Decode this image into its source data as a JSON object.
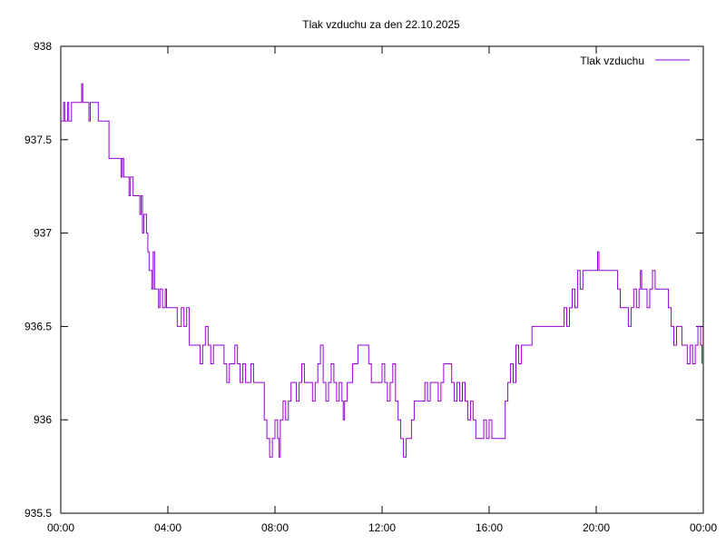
{
  "chart_data": {
    "type": "line",
    "title": "Tlak vzduchu za den 22.10.2025",
    "xlabel": "",
    "ylabel": "",
    "x_range_hours": [
      0,
      24
    ],
    "ylim": [
      935.5,
      938
    ],
    "grid": false,
    "legend_position": "top-right",
    "y_ticks": [
      "935.5",
      "936",
      "936.5",
      "937",
      "937.5",
      "938"
    ],
    "x_ticks": [
      "00:00",
      "04:00",
      "08:00",
      "12:00",
      "16:00",
      "20:00",
      "00:00"
    ],
    "series": [
      {
        "name": "Tlak vzduchu",
        "color": "#9400d3",
        "points": [
          [
            0.0,
            937.6
          ],
          [
            0.1,
            937.7
          ],
          [
            0.15,
            937.6
          ],
          [
            0.25,
            937.7
          ],
          [
            0.3,
            937.6
          ],
          [
            0.4,
            937.7
          ],
          [
            0.5,
            937.7
          ],
          [
            0.7,
            937.7
          ],
          [
            0.78,
            937.8
          ],
          [
            0.82,
            937.7
          ],
          [
            1.0,
            937.7
          ],
          [
            1.05,
            937.6
          ],
          [
            1.1,
            937.7
          ],
          [
            1.3,
            937.7
          ],
          [
            1.4,
            937.6
          ],
          [
            1.7,
            937.6
          ],
          [
            1.8,
            937.4
          ],
          [
            2.2,
            937.4
          ],
          [
            2.25,
            937.3
          ],
          [
            2.3,
            937.4
          ],
          [
            2.35,
            937.3
          ],
          [
            2.5,
            937.3
          ],
          [
            2.55,
            937.2
          ],
          [
            2.6,
            937.3
          ],
          [
            2.7,
            937.2
          ],
          [
            2.9,
            937.2
          ],
          [
            2.95,
            937.1
          ],
          [
            3.0,
            937.2
          ],
          [
            3.05,
            937.0
          ],
          [
            3.1,
            937.1
          ],
          [
            3.2,
            937.0
          ],
          [
            3.25,
            936.9
          ],
          [
            3.3,
            936.8
          ],
          [
            3.4,
            936.7
          ],
          [
            3.45,
            936.9
          ],
          [
            3.5,
            936.7
          ],
          [
            3.6,
            936.7
          ],
          [
            3.65,
            936.6
          ],
          [
            3.7,
            936.7
          ],
          [
            3.8,
            936.6
          ],
          [
            3.9,
            936.7
          ],
          [
            3.95,
            936.6
          ],
          [
            4.3,
            936.6
          ],
          [
            4.35,
            936.5
          ],
          [
            4.5,
            936.6
          ],
          [
            4.6,
            936.5
          ],
          [
            4.7,
            936.6
          ],
          [
            4.8,
            936.4
          ],
          [
            5.1,
            936.4
          ],
          [
            5.2,
            936.3
          ],
          [
            5.3,
            936.4
          ],
          [
            5.4,
            936.5
          ],
          [
            5.5,
            936.4
          ],
          [
            5.6,
            936.3
          ],
          [
            5.7,
            936.4
          ],
          [
            6.0,
            936.4
          ],
          [
            6.1,
            936.3
          ],
          [
            6.2,
            936.2
          ],
          [
            6.3,
            936.3
          ],
          [
            6.5,
            936.4
          ],
          [
            6.6,
            936.3
          ],
          [
            6.7,
            936.2
          ],
          [
            6.8,
            936.3
          ],
          [
            6.9,
            936.2
          ],
          [
            7.0,
            936.2
          ],
          [
            7.1,
            936.3
          ],
          [
            7.2,
            936.2
          ],
          [
            7.5,
            936.2
          ],
          [
            7.6,
            936.0
          ],
          [
            7.7,
            935.9
          ],
          [
            7.8,
            935.8
          ],
          [
            7.9,
            935.9
          ],
          [
            8.0,
            936.0
          ],
          [
            8.1,
            935.9
          ],
          [
            8.15,
            935.8
          ],
          [
            8.2,
            936.0
          ],
          [
            8.3,
            936.1
          ],
          [
            8.4,
            936.0
          ],
          [
            8.5,
            936.1
          ],
          [
            8.6,
            936.2
          ],
          [
            8.8,
            936.1
          ],
          [
            8.9,
            936.2
          ],
          [
            9.0,
            936.3
          ],
          [
            9.1,
            936.2
          ],
          [
            9.3,
            936.2
          ],
          [
            9.4,
            936.1
          ],
          [
            9.5,
            936.2
          ],
          [
            9.6,
            936.3
          ],
          [
            9.7,
            936.4
          ],
          [
            9.8,
            936.2
          ],
          [
            9.9,
            936.1
          ],
          [
            10.0,
            936.2
          ],
          [
            10.1,
            936.3
          ],
          [
            10.2,
            936.2
          ],
          [
            10.3,
            936.1
          ],
          [
            10.4,
            936.2
          ],
          [
            10.5,
            936.1
          ],
          [
            10.55,
            936.0
          ],
          [
            10.6,
            936.1
          ],
          [
            10.7,
            936.2
          ],
          [
            10.8,
            936.2
          ],
          [
            10.9,
            936.3
          ],
          [
            11.0,
            936.3
          ],
          [
            11.1,
            936.4
          ],
          [
            11.4,
            936.4
          ],
          [
            11.5,
            936.3
          ],
          [
            11.6,
            936.2
          ],
          [
            11.9,
            936.2
          ],
          [
            12.0,
            936.3
          ],
          [
            12.1,
            936.2
          ],
          [
            12.2,
            936.1
          ],
          [
            12.3,
            936.2
          ],
          [
            12.4,
            936.3
          ],
          [
            12.5,
            936.1
          ],
          [
            12.6,
            936.0
          ],
          [
            12.7,
            935.9
          ],
          [
            12.8,
            935.8
          ],
          [
            12.9,
            935.9
          ],
          [
            13.1,
            936.0
          ],
          [
            13.2,
            936.1
          ],
          [
            13.5,
            936.1
          ],
          [
            13.6,
            936.2
          ],
          [
            13.7,
            936.1
          ],
          [
            13.8,
            936.2
          ],
          [
            14.0,
            936.2
          ],
          [
            14.1,
            936.1
          ],
          [
            14.2,
            936.2
          ],
          [
            14.3,
            936.3
          ],
          [
            14.5,
            936.3
          ],
          [
            14.6,
            936.2
          ],
          [
            14.7,
            936.1
          ],
          [
            14.8,
            936.2
          ],
          [
            14.9,
            936.1
          ],
          [
            15.0,
            936.2
          ],
          [
            15.1,
            936.1
          ],
          [
            15.2,
            936.0
          ],
          [
            15.3,
            936.1
          ],
          [
            15.4,
            936.0
          ],
          [
            15.5,
            935.9
          ],
          [
            15.7,
            935.9
          ],
          [
            15.8,
            936.0
          ],
          [
            15.9,
            935.9
          ],
          [
            16.0,
            936.0
          ],
          [
            16.1,
            935.9
          ],
          [
            16.2,
            935.9
          ],
          [
            16.3,
            935.9
          ],
          [
            16.5,
            935.9
          ],
          [
            16.6,
            936.1
          ],
          [
            16.7,
            936.2
          ],
          [
            16.8,
            936.3
          ],
          [
            16.9,
            936.2
          ],
          [
            17.0,
            936.4
          ],
          [
            17.1,
            936.3
          ],
          [
            17.2,
            936.4
          ],
          [
            17.5,
            936.4
          ],
          [
            17.6,
            936.5
          ],
          [
            18.7,
            936.5
          ],
          [
            18.8,
            936.6
          ],
          [
            18.9,
            936.5
          ],
          [
            19.0,
            936.6
          ],
          [
            19.1,
            936.7
          ],
          [
            19.2,
            936.6
          ],
          [
            19.3,
            936.8
          ],
          [
            19.4,
            936.7
          ],
          [
            19.5,
            936.8
          ],
          [
            20.0,
            936.8
          ],
          [
            20.05,
            936.9
          ],
          [
            20.1,
            936.8
          ],
          [
            20.7,
            936.8
          ],
          [
            20.8,
            936.7
          ],
          [
            20.9,
            936.6
          ],
          [
            21.1,
            936.6
          ],
          [
            21.2,
            936.5
          ],
          [
            21.3,
            936.6
          ],
          [
            21.4,
            936.7
          ],
          [
            21.5,
            936.6
          ],
          [
            21.6,
            936.7
          ],
          [
            21.65,
            936.8
          ],
          [
            21.7,
            936.7
          ],
          [
            21.9,
            936.6
          ],
          [
            22.0,
            936.7
          ],
          [
            22.1,
            936.8
          ],
          [
            22.2,
            936.7
          ],
          [
            22.6,
            936.7
          ],
          [
            22.7,
            936.6
          ],
          [
            22.8,
            936.5
          ],
          [
            22.9,
            936.4
          ],
          [
            23.0,
            936.5
          ],
          [
            23.2,
            936.4
          ],
          [
            23.3,
            936.4
          ],
          [
            23.4,
            936.3
          ],
          [
            23.5,
            936.4
          ],
          [
            23.6,
            936.3
          ],
          [
            23.7,
            936.4
          ],
          [
            23.8,
            936.5
          ],
          [
            23.9,
            936.4
          ],
          [
            23.95,
            936.3
          ]
        ]
      }
    ]
  }
}
